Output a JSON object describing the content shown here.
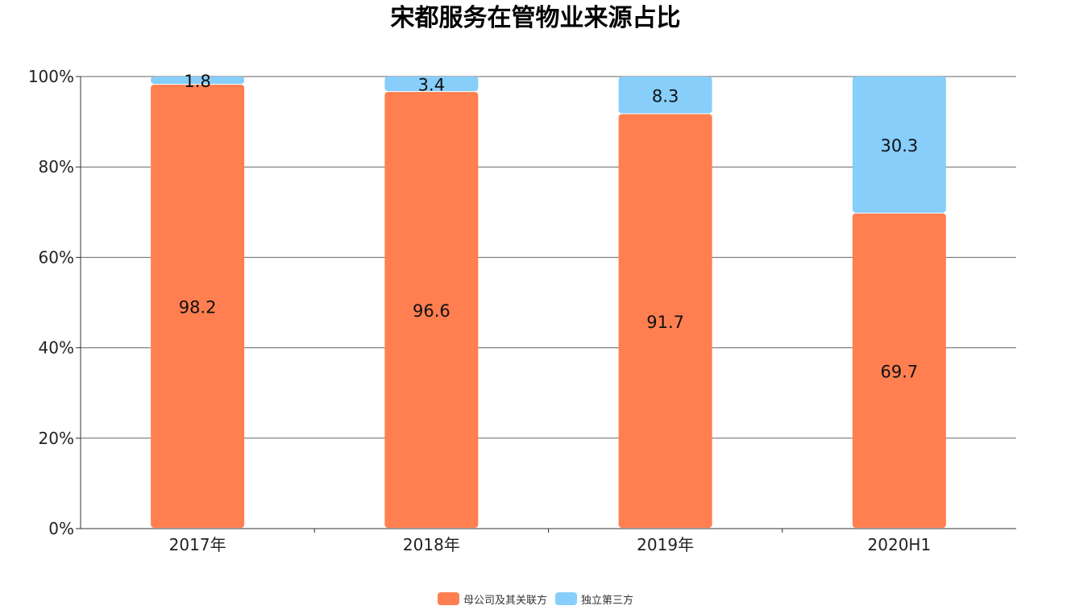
{
  "chart_data": {
    "type": "bar",
    "stacked": true,
    "title": "宋都服务在管物业来源占比",
    "categories": [
      "2017年",
      "2018年",
      "2019年",
      "2020H1"
    ],
    "series": [
      {
        "name": "母公司及其关联方",
        "values": [
          98.2,
          96.6,
          91.7,
          69.7
        ],
        "color": "#FF7F50"
      },
      {
        "name": "独立第三方",
        "values": [
          1.8,
          3.4,
          8.3,
          30.3
        ],
        "color": "#87CEFA"
      }
    ],
    "y_ticks": [
      "0%",
      "20%",
      "40%",
      "60%",
      "80%",
      "100%"
    ],
    "ylim": [
      0,
      100
    ],
    "grid": true,
    "legend_position": "bottom-center"
  }
}
